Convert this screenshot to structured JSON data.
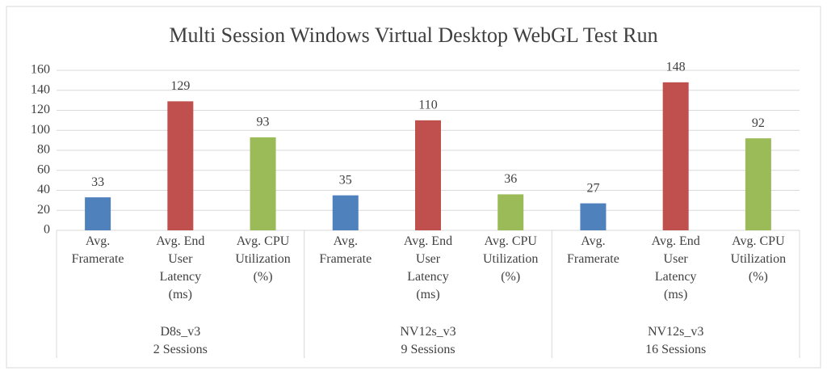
{
  "chart_data": {
    "type": "bar",
    "title": "Multi Session Windows Virtual Desktop WebGL Test Run",
    "colors": [
      "#4f81bd",
      "#c0504d",
      "#9bbb59"
    ],
    "groups": [
      {
        "name": [
          "D8s_v3",
          "2 Sessions"
        ],
        "categories": [
          [
            "Avg.",
            "Framerate"
          ],
          [
            "Avg. End",
            "User",
            "Latency",
            "(ms)"
          ],
          [
            "Avg. CPU",
            "Utilization",
            "(%)"
          ]
        ],
        "values": [
          33,
          129,
          93
        ]
      },
      {
        "name": [
          "NV12s_v3",
          "9 Sessions"
        ],
        "categories": [
          [
            "Avg.",
            "Framerate"
          ],
          [
            "Avg. End",
            "User",
            "Latency",
            "(ms)"
          ],
          [
            "Avg. CPU",
            "Utilization",
            "(%)"
          ]
        ],
        "values": [
          35,
          110,
          36
        ]
      },
      {
        "name": [
          "NV12s_v3",
          "16 Sessions"
        ],
        "categories": [
          [
            "Avg.",
            "Framerate"
          ],
          [
            "Avg. End",
            "User",
            "Latency",
            "(ms)"
          ],
          [
            "Avg. CPU",
            "Utilization",
            "(%)"
          ]
        ],
        "values": [
          27,
          148,
          92
        ]
      }
    ],
    "ylim": [
      0,
      160
    ],
    "yticks": [
      0,
      20,
      40,
      60,
      80,
      100,
      120,
      140,
      160
    ],
    "grid": true
  }
}
